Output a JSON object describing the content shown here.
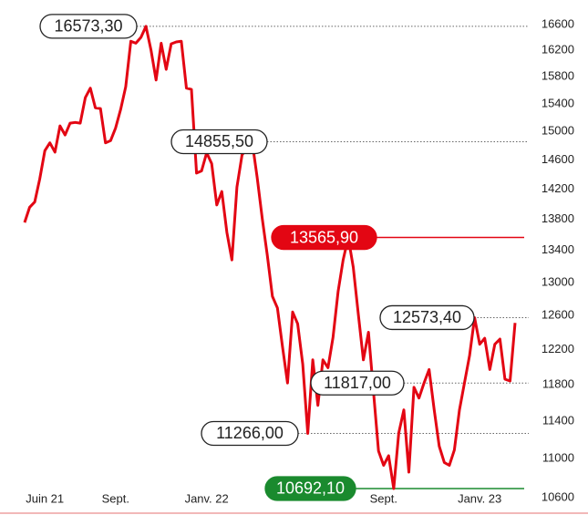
{
  "chart_data": {
    "type": "line",
    "log_scale": true,
    "ylim": [
      10600,
      16600
    ],
    "yticks": [
      10600,
      11000,
      11400,
      11800,
      12200,
      12600,
      13000,
      13400,
      13800,
      14200,
      14600,
      15000,
      15400,
      15800,
      16200,
      16600
    ],
    "categories": [
      null,
      null,
      null,
      null,
      "Juin 21",
      null,
      null,
      null,
      null,
      null,
      null,
      null,
      null,
      null,
      null,
      null,
      null,
      null,
      "Sept.",
      null,
      null,
      null,
      null,
      null,
      null,
      null,
      null,
      null,
      null,
      null,
      null,
      null,
      null,
      null,
      null,
      null,
      "Janv. 22",
      null,
      null,
      null,
      null,
      null,
      null,
      null,
      null,
      null,
      null,
      null,
      null,
      null,
      null,
      null,
      null,
      null,
      null,
      null,
      null,
      null,
      null,
      null,
      null,
      null,
      null,
      null,
      null,
      null,
      null,
      null,
      null,
      null,
      null,
      "Sept.",
      null,
      null,
      null,
      null,
      null,
      null,
      null,
      null,
      null,
      null,
      null,
      null,
      null,
      null,
      null,
      null,
      null,
      null,
      "Janv. 23",
      null,
      null,
      null,
      null,
      null,
      null,
      null
    ],
    "series": [
      {
        "color": "#e30613",
        "values": [
          13760,
          13960,
          14030,
          14340,
          14730,
          14840,
          14710,
          15080,
          14950,
          15120,
          15130,
          15120,
          15490,
          15630,
          15340,
          15330,
          14840,
          14870,
          15050,
          15320,
          15650,
          16340,
          16310,
          16400,
          16573.3,
          16200,
          15750,
          16310,
          15910,
          16300,
          16330,
          16340,
          15630,
          15610,
          14420,
          14450,
          14700,
          14550,
          13990,
          14170,
          13630,
          13280,
          14230,
          14670,
          14770,
          14855.5,
          14360,
          13810,
          13340,
          12830,
          12690,
          12230,
          11817,
          12640,
          12500,
          12030,
          11266,
          12080,
          11570,
          12080,
          11990,
          12340,
          12890,
          13280,
          13565.9,
          13190,
          12610,
          12080,
          12400,
          11720,
          11080,
          10930,
          11030,
          10692.1,
          11270,
          11520,
          10860,
          11770,
          11650,
          11820,
          11970,
          11520,
          11130,
          10960,
          10930,
          11090,
          11520,
          11820,
          12130,
          12573.4,
          12260,
          12330,
          11970,
          12260,
          12320,
          11860,
          11840,
          12510
        ]
      }
    ],
    "annotations": [
      {
        "value": 16573.3,
        "label": "16573,30",
        "color": "#ffffff"
      },
      {
        "value": 14855.5,
        "label": "14855,50",
        "color": "#ffffff"
      },
      {
        "value": 13565.9,
        "label": "13565,90",
        "color": "#e30613"
      },
      {
        "value": 12573.4,
        "label": "12573,40",
        "color": "#ffffff"
      },
      {
        "value": 11817,
        "label": "11817,00",
        "color": "#ffffff"
      },
      {
        "value": 11266,
        "label": "11266,00",
        "color": "#ffffff"
      },
      {
        "value": 10692.1,
        "label": "10692,10",
        "color": "#1a8a2e"
      }
    ]
  }
}
